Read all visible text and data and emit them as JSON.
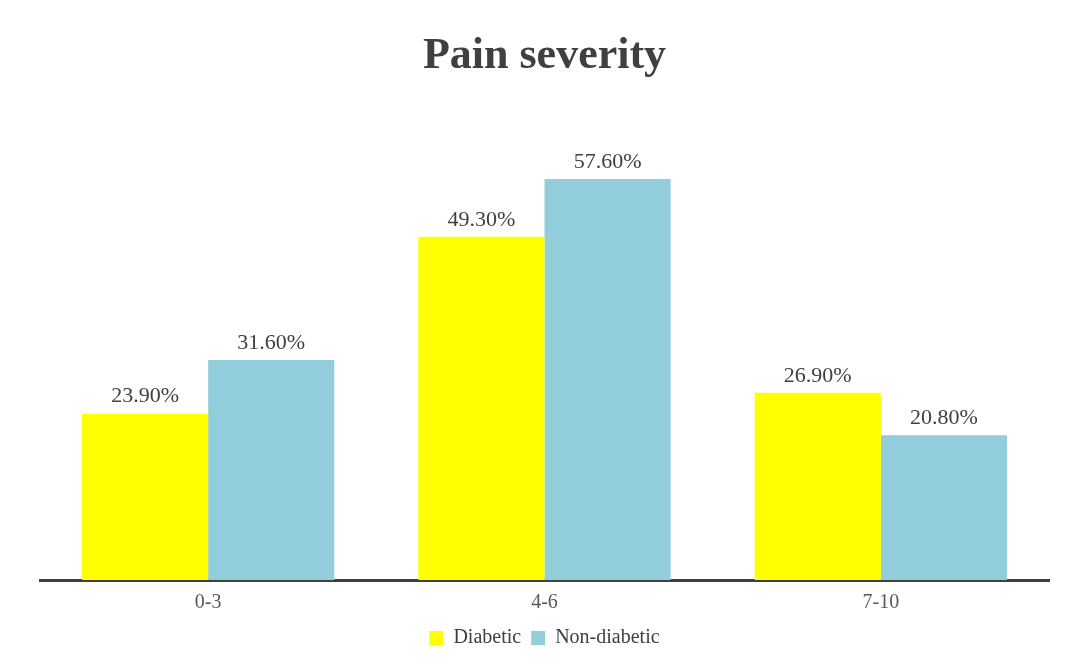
{
  "chart_data": {
    "type": "bar",
    "title": "Pain severity",
    "categories": [
      "0-3",
      "4-6",
      "7-10"
    ],
    "series": [
      {
        "name": "Diabetic",
        "color": "#ffff00",
        "values": [
          23.9,
          49.3,
          26.9
        ],
        "value_labels": [
          "23.90%",
          "49.30%",
          "26.90%"
        ]
      },
      {
        "name": "Non-diabetic",
        "color": "#92cddc",
        "values": [
          31.6,
          57.6,
          20.8
        ],
        "value_labels": [
          "31.60%",
          "57.60%",
          "20.80%"
        ]
      }
    ],
    "legend": "bottom"
  }
}
